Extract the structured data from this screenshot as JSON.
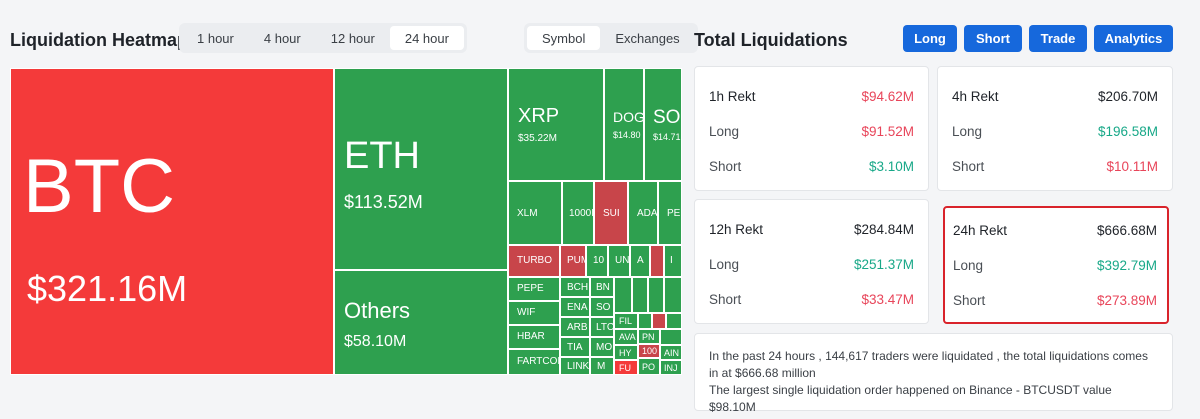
{
  "heatmap": {
    "title": "Liquidation Heatmap",
    "timeframes": [
      "1 hour",
      "4 hour",
      "12 hour",
      "24 hour"
    ],
    "active_timeframe": "24 hour",
    "groupings": [
      "Symbol",
      "Exchanges"
    ],
    "active_grouping": "Symbol",
    "cells": {
      "btc": {
        "symbol": "BTC",
        "value": "$321.16M"
      },
      "eth": {
        "symbol": "ETH",
        "value": "$113.52M"
      },
      "others": {
        "symbol": "Others",
        "value": "$58.10M"
      },
      "xrp": {
        "symbol": "XRP",
        "value": "$35.22M"
      },
      "doge": {
        "symbol": "DOG",
        "value": "$14.80"
      },
      "sol": {
        "symbol": "SOL",
        "value": "$14.71"
      },
      "xlm": {
        "symbol": "XLM"
      },
      "k1000": {
        "symbol": "1000I"
      },
      "sui": {
        "symbol": "SUI"
      },
      "ada": {
        "symbol": "ADA"
      },
      "pe": {
        "symbol": "PE"
      },
      "turbo": {
        "symbol": "TURBO"
      },
      "pum": {
        "symbol": "PUM"
      },
      "c10": {
        "symbol": "10"
      },
      "un": {
        "symbol": "UN"
      },
      "a1": {
        "symbol": "A"
      },
      "i1": {
        "symbol": "I"
      },
      "pepe": {
        "symbol": "PEPE"
      },
      "bch": {
        "symbol": "BCH"
      },
      "bn": {
        "symbol": "BN"
      },
      "wif": {
        "symbol": "WIF"
      },
      "ena": {
        "symbol": "ENA"
      },
      "so": {
        "symbol": "SO"
      },
      "hbar": {
        "symbol": "HBAR"
      },
      "arb": {
        "symbol": "ARB"
      },
      "ltc": {
        "symbol": "LTC"
      },
      "fil": {
        "symbol": "FIL"
      },
      "fartcoin": {
        "symbol": "FARTCOI"
      },
      "tia": {
        "symbol": "TIA"
      },
      "mo": {
        "symbol": "MO"
      },
      "ava": {
        "symbol": "AVA"
      },
      "link": {
        "symbol": "LINK"
      },
      "m": {
        "symbol": "M"
      },
      "hy": {
        "symbol": "HY"
      },
      "pn": {
        "symbol": "PN"
      },
      "fu": {
        "symbol": "FU"
      },
      "po": {
        "symbol": "PO"
      },
      "ain": {
        "symbol": "AIN"
      },
      "inj": {
        "symbol": "INJ"
      },
      "c1000": {
        "symbol": "100"
      }
    }
  },
  "total": {
    "title": "Total Liquidations",
    "buttons": [
      "Long",
      "Short",
      "Trade",
      "Analytics"
    ],
    "cards": [
      {
        "head_label": "1h Rekt",
        "head_value": "$94.62M",
        "long_label": "Long",
        "long_value": "$91.52M",
        "short_label": "Short",
        "short_value": "$3.10M"
      },
      {
        "head_label": "4h Rekt",
        "head_value": "$206.70M",
        "long_label": "Long",
        "long_value": "$196.58M",
        "short_label": "Short",
        "short_value": "$10.11M"
      },
      {
        "head_label": "12h Rekt",
        "head_value": "$284.84M",
        "long_label": "Long",
        "long_value": "$251.37M",
        "short_label": "Short",
        "short_value": "$33.47M"
      },
      {
        "head_label": "24h Rekt",
        "head_value": "$666.68M",
        "long_label": "Long",
        "long_value": "$392.79M",
        "short_label": "Short",
        "short_value": "$273.89M"
      }
    ],
    "info_line1": "In the past 24 hours , 144,617 traders were liquidated , the total liquidations comes in at $666.68 million",
    "info_line2": "The largest single liquidation order happened on Binance - BTCUSDT value $98.10M"
  },
  "colors": {
    "accent": "#1668dc",
    "long_cell": "#2ea04f",
    "short_cell": "#f43a3a",
    "highlight": "#d9232b"
  }
}
